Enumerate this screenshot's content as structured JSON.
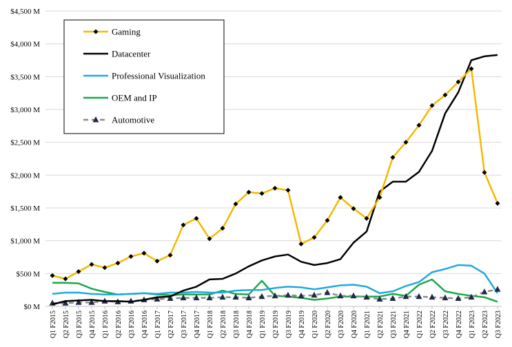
{
  "chart_data": {
    "type": "line",
    "title": "",
    "xlabel": "",
    "ylabel": "",
    "ylim": [
      0,
      4500
    ],
    "yticks": [
      0,
      500,
      1000,
      1500,
      2000,
      2500,
      3000,
      3500,
      4000,
      4500
    ],
    "ytick_labels": [
      "$0 M",
      "$500 M",
      "$1,000 M",
      "$1,500 M",
      "$2,000 M",
      "$2,500 M",
      "$3,000 M",
      "$3,500 M",
      "$4,000 M",
      "$4,500 M"
    ],
    "grid": "horizontal",
    "legend_position": "top-left",
    "categories": [
      "Q1 F2015",
      "Q2 F2015",
      "Q3 F2015",
      "Q4 F2015",
      "Q1 F2016",
      "Q2 F2016",
      "Q3 F2016",
      "Q4 F2016",
      "Q1 F2017",
      "Q2 F2017",
      "Q3 F2017",
      "Q4 F2017",
      "Q1 F2018",
      "Q2 F2018",
      "Q3 F2018",
      "Q4 F2018",
      "Q1 F2019",
      "Q2 F2019",
      "Q3 F2019",
      "Q4 F2019",
      "Q1 F2020",
      "Q2 F2020",
      "Q3 F2020",
      "Q4 F2020",
      "Q1 F2021",
      "Q2 F2021",
      "Q3 F2021",
      "Q4 F2021",
      "Q1 F2022",
      "Q2 F2022",
      "Q3 F2022",
      "Q4 F2022",
      "Q1 F2023",
      "Q2 F2023",
      "Q3 F2023"
    ],
    "series": [
      {
        "name": "Gaming",
        "color": "#f5b800",
        "marker": "diamond",
        "dash": "none",
        "values": [
          470,
          420,
          530,
          640,
          590,
          660,
          760,
          810,
          690,
          780,
          1240,
          1340,
          1030,
          1190,
          1560,
          1740,
          1720,
          1800,
          1770,
          950,
          1050,
          1310,
          1660,
          1490,
          1340,
          1660,
          2270,
          2500,
          2760,
          3060,
          3220,
          3420,
          3620,
          2040,
          1570
        ]
      },
      {
        "name": "Datacenter",
        "color": "#000000",
        "marker": "none",
        "dash": "none",
        "values": [
          30,
          80,
          90,
          100,
          80,
          80,
          70,
          100,
          140,
          150,
          240,
          300,
          410,
          420,
          500,
          610,
          700,
          760,
          790,
          680,
          630,
          660,
          720,
          970,
          1140,
          1750,
          1900,
          1900,
          2050,
          2370,
          2940,
          3260,
          3750,
          3810,
          3830
        ]
      },
      {
        "name": "Professional Visualization",
        "color": "#1fa8e0",
        "marker": "none",
        "dash": "none",
        "values": [
          190,
          210,
          210,
          190,
          180,
          180,
          190,
          200,
          190,
          210,
          210,
          220,
          210,
          210,
          240,
          250,
          250,
          280,
          300,
          290,
          260,
          290,
          320,
          330,
          300,
          200,
          230,
          310,
          370,
          520,
          570,
          630,
          620,
          500,
          200
        ]
      },
      {
        "name": "OEM and IP",
        "color": "#1aa84a",
        "marker": "none",
        "dash": "none",
        "values": [
          360,
          360,
          350,
          270,
          220,
          180,
          190,
          200,
          180,
          170,
          180,
          180,
          180,
          240,
          190,
          180,
          390,
          160,
          150,
          130,
          100,
          120,
          150,
          150,
          150,
          150,
          190,
          160,
          330,
          410,
          230,
          190,
          160,
          140,
          70
        ]
      },
      {
        "name": "Automotive",
        "color": "#8c8c8c",
        "marker": "triangle",
        "dash": "dashed",
        "values": [
          50,
          50,
          60,
          60,
          80,
          70,
          80,
          100,
          110,
          120,
          130,
          130,
          130,
          140,
          140,
          130,
          150,
          160,
          170,
          160,
          170,
          210,
          160,
          160,
          140,
          110,
          120,
          150,
          150,
          140,
          130,
          120,
          140,
          220,
          260
        ]
      }
    ]
  }
}
